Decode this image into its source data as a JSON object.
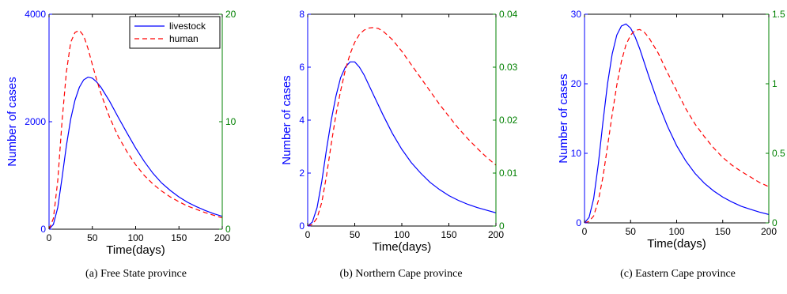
{
  "colors": {
    "livestock": "#0000ff",
    "human": "#ff0000",
    "left_axis": "#0000ff",
    "right_axis": "#008000",
    "frame": "#000000"
  },
  "legend": {
    "entries": [
      "livestock",
      "human"
    ]
  },
  "chart_data": [
    {
      "type": "line",
      "caption": "(a) Free State province",
      "xlabel": "Time(days)",
      "ylabel": "Number of cases",
      "xlim": [
        0,
        200
      ],
      "xticks": [
        0,
        50,
        100,
        150,
        200
      ],
      "ylim_left": [
        0,
        4000
      ],
      "yticks_left": [
        0,
        2000,
        4000
      ],
      "ylim_right": [
        0,
        20
      ],
      "yticks_right": [
        0,
        10,
        20
      ],
      "legend": true,
      "legend_position": "top-right",
      "series": [
        {
          "name": "livestock",
          "axis": "left",
          "style": "solid",
          "x": [
            0,
            5,
            10,
            15,
            20,
            25,
            30,
            35,
            40,
            45,
            50,
            55,
            60,
            70,
            80,
            90,
            100,
            110,
            120,
            130,
            140,
            150,
            160,
            170,
            180,
            190,
            200
          ],
          "y": [
            0,
            90,
            400,
            950,
            1550,
            2050,
            2400,
            2640,
            2780,
            2830,
            2810,
            2740,
            2640,
            2380,
            2080,
            1790,
            1510,
            1260,
            1040,
            860,
            720,
            600,
            500,
            420,
            350,
            290,
            240
          ]
        },
        {
          "name": "human",
          "axis": "right",
          "style": "dashed",
          "x": [
            0,
            5,
            10,
            15,
            20,
            25,
            30,
            35,
            40,
            45,
            50,
            55,
            60,
            70,
            80,
            90,
            100,
            110,
            120,
            130,
            140,
            150,
            160,
            170,
            180,
            190,
            200
          ],
          "y": [
            0,
            1.0,
            4.5,
            10.0,
            14.6,
            17.4,
            18.3,
            18.5,
            18.0,
            16.8,
            15.3,
            13.9,
            12.6,
            10.4,
            8.6,
            7.2,
            6.0,
            5.0,
            4.2,
            3.55,
            3.0,
            2.55,
            2.15,
            1.85,
            1.55,
            1.3,
            1.05
          ]
        }
      ]
    },
    {
      "type": "line",
      "caption": "(b) Northern Cape province",
      "xlabel": "Time(days)",
      "ylabel": "Number of cases",
      "xlim": [
        0,
        200
      ],
      "xticks": [
        0,
        50,
        100,
        150,
        200
      ],
      "ylim_left": [
        0,
        8
      ],
      "yticks_left": [
        0,
        2,
        4,
        6,
        8
      ],
      "ylim_right": [
        0,
        0.04
      ],
      "yticks_right": [
        0,
        0.01,
        0.02,
        0.03,
        0.04
      ],
      "legend": false,
      "series": [
        {
          "name": "livestock",
          "axis": "left",
          "style": "solid",
          "x": [
            0,
            5,
            10,
            15,
            20,
            25,
            30,
            35,
            40,
            45,
            50,
            55,
            60,
            70,
            80,
            90,
            100,
            110,
            120,
            130,
            140,
            150,
            160,
            170,
            180,
            190,
            200
          ],
          "y": [
            0,
            0.15,
            0.7,
            1.7,
            2.9,
            4.0,
            4.9,
            5.6,
            6.0,
            6.2,
            6.2,
            6.0,
            5.7,
            4.95,
            4.2,
            3.5,
            2.9,
            2.4,
            2.0,
            1.65,
            1.38,
            1.15,
            0.97,
            0.82,
            0.7,
            0.6,
            0.5
          ]
        },
        {
          "name": "human",
          "axis": "right",
          "style": "dashed",
          "x": [
            0,
            5,
            10,
            15,
            20,
            25,
            30,
            35,
            40,
            45,
            50,
            55,
            60,
            65,
            70,
            75,
            80,
            90,
            100,
            110,
            120,
            130,
            140,
            150,
            160,
            170,
            180,
            190,
            200
          ],
          "y": [
            0,
            0.0003,
            0.0015,
            0.0045,
            0.0095,
            0.0155,
            0.021,
            0.0255,
            0.0295,
            0.0325,
            0.0347,
            0.0362,
            0.037,
            0.0374,
            0.0375,
            0.0373,
            0.0368,
            0.0352,
            0.033,
            0.0305,
            0.028,
            0.0255,
            0.023,
            0.0207,
            0.0185,
            0.0165,
            0.0147,
            0.013,
            0.0115
          ]
        }
      ]
    },
    {
      "type": "line",
      "caption": "(c) Eastern Cape province",
      "xlabel": "Time(days)",
      "ylabel": "Number of cases",
      "xlim": [
        0,
        200
      ],
      "xticks": [
        0,
        50,
        100,
        150,
        200
      ],
      "ylim_left": [
        0,
        30
      ],
      "yticks_left": [
        0,
        10,
        20,
        30
      ],
      "ylim_right": [
        0,
        1.5
      ],
      "yticks_right": [
        0,
        0.5,
        1,
        1.5
      ],
      "legend": false,
      "series": [
        {
          "name": "livestock",
          "axis": "left",
          "style": "solid",
          "x": [
            0,
            5,
            10,
            15,
            20,
            25,
            30,
            35,
            40,
            45,
            50,
            55,
            60,
            70,
            80,
            90,
            100,
            110,
            120,
            130,
            140,
            150,
            160,
            170,
            180,
            190,
            200
          ],
          "y": [
            0,
            0.8,
            3.5,
            8.5,
            14.5,
            20.0,
            24.3,
            27.0,
            28.3,
            28.6,
            28.0,
            26.7,
            25.0,
            21.0,
            17.2,
            13.9,
            11.1,
            8.9,
            7.1,
            5.7,
            4.6,
            3.7,
            3.0,
            2.4,
            1.95,
            1.55,
            1.2
          ]
        },
        {
          "name": "human",
          "axis": "right",
          "style": "dashed",
          "x": [
            0,
            5,
            10,
            15,
            20,
            25,
            30,
            35,
            40,
            45,
            50,
            55,
            60,
            65,
            70,
            80,
            90,
            100,
            110,
            120,
            130,
            140,
            150,
            160,
            170,
            180,
            190,
            200
          ],
          "y": [
            0,
            0.01,
            0.05,
            0.16,
            0.33,
            0.55,
            0.78,
            0.99,
            1.16,
            1.28,
            1.35,
            1.385,
            1.39,
            1.37,
            1.33,
            1.22,
            1.08,
            0.95,
            0.82,
            0.71,
            0.62,
            0.54,
            0.47,
            0.415,
            0.37,
            0.33,
            0.29,
            0.26
          ]
        }
      ]
    }
  ]
}
